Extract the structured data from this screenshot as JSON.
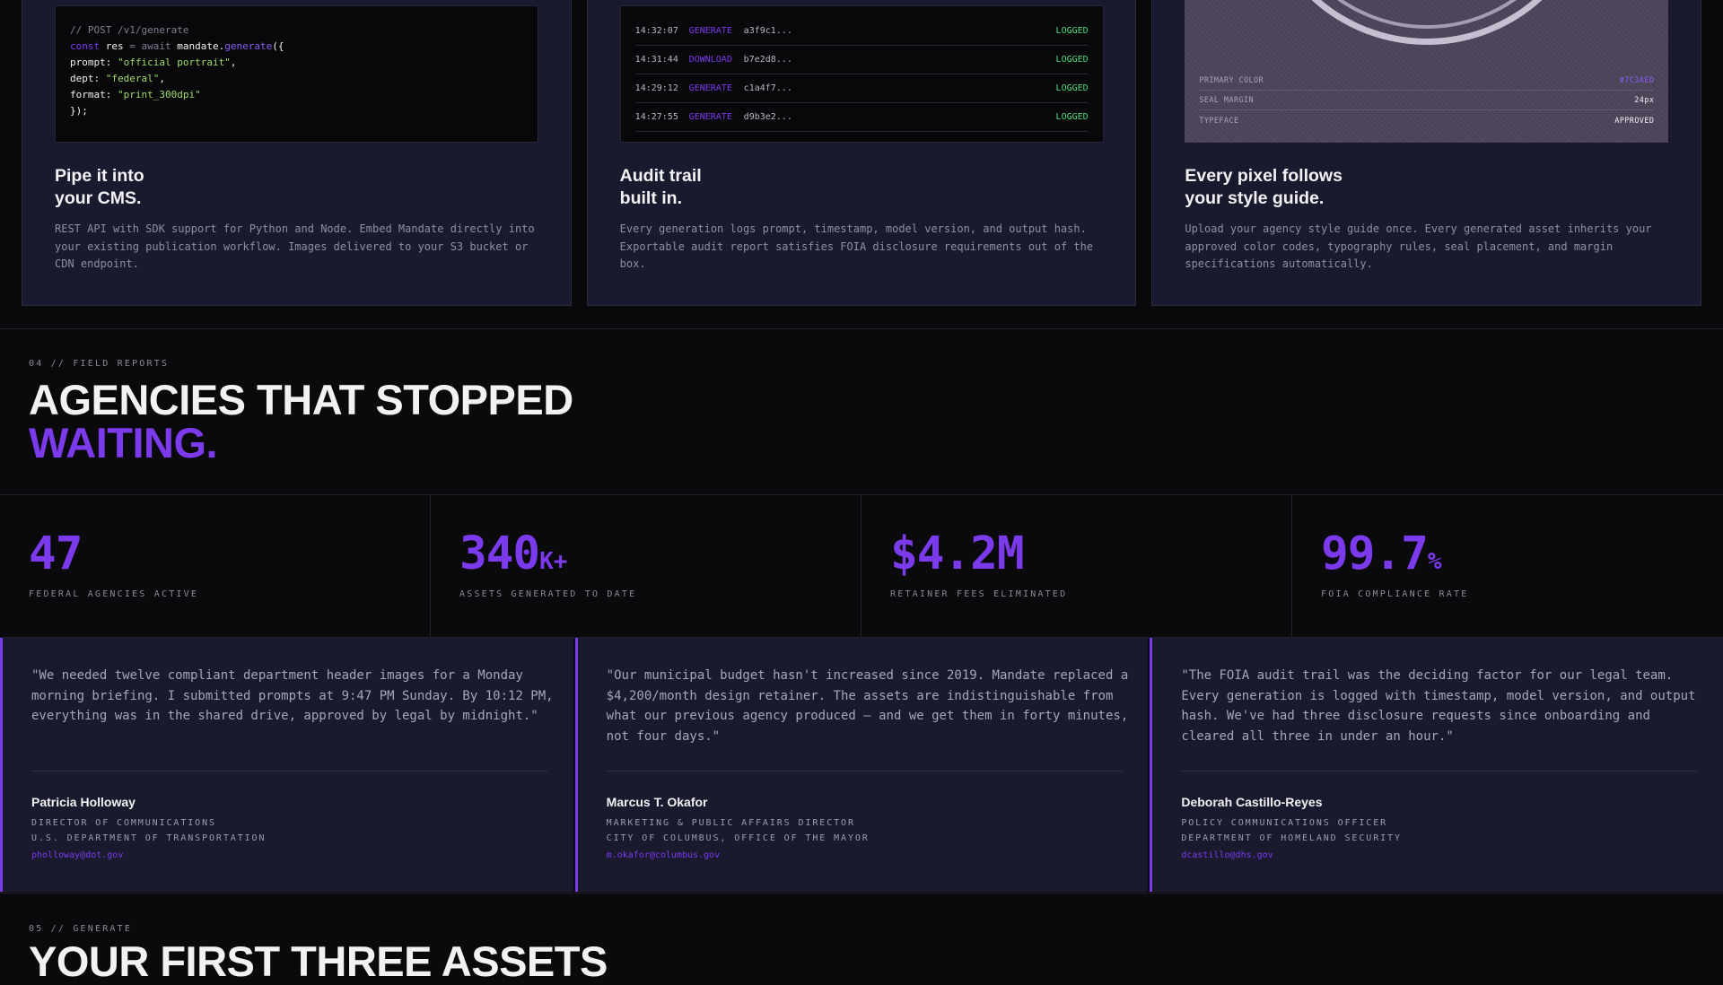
{
  "features": [
    {
      "title_line1": "Pipe it into",
      "title_line2": "your CMS.",
      "description": "REST API with SDK support for Python and Node. Embed Mandate directly into your existing publication workflow. Images delivered to your S3 bucket or CDN endpoint.",
      "code": {
        "comment": "// POST /v1/generate",
        "kw_const": "const",
        "var_res": "res",
        "eq": " = ",
        "kw_await": "await",
        "obj": "mandate.",
        "fn": "generate",
        "open": "({",
        "prompt_key": "prompt: ",
        "prompt_val": "\"official portrait\"",
        "dept_key": "dept: ",
        "dept_val": "\"federal\"",
        "format_key": "format: ",
        "format_val": "\"print_300dpi\"",
        "close": "});",
        "comma": ","
      }
    },
    {
      "title_line1": "Audit trail",
      "title_line2": "built in.",
      "description": "Every generation logs prompt, timestamp, model version, and output hash. Exportable audit report satisfies FOIA disclosure requirements out of the box.",
      "log": [
        {
          "time": "14:32:07",
          "action": "GENERATE",
          "hash": "a3f9c1...",
          "status": "LOGGED"
        },
        {
          "time": "14:31:44",
          "action": "DOWNLOAD",
          "hash": "b7e2d8...",
          "status": "LOGGED"
        },
        {
          "time": "14:29:12",
          "action": "GENERATE",
          "hash": "c1a4f7...",
          "status": "LOGGED"
        },
        {
          "time": "14:27:55",
          "action": "GENERATE",
          "hash": "d9b3e2...",
          "status": "LOGGED"
        }
      ]
    },
    {
      "title_line1": "Every pixel follows",
      "title_line2": "your style guide.",
      "description": "Upload your agency style guide once. Every generated asset inherits your approved color codes, typography rules, seal placement, and margin specifications automatically.",
      "specs": [
        {
          "key": "PRIMARY COLOR",
          "value": "#7C3AED"
        },
        {
          "key": "SEAL MARGIN",
          "value": "24px"
        },
        {
          "key": "TYPEFACE",
          "value": "APPROVED"
        }
      ]
    }
  ],
  "reports": {
    "eyebrow": "04 // FIELD REPORTS",
    "headline_line1": "AGENCIES THAT STOPPED",
    "headline_line2": "WAITING.",
    "stats": [
      {
        "value": "47",
        "suffix": "",
        "label": "FEDERAL AGENCIES ACTIVE"
      },
      {
        "value": "340",
        "suffix": "K+",
        "label": "ASSETS GENERATED TO DATE"
      },
      {
        "value": "$4.2M",
        "suffix": "",
        "label": "RETAINER FEES ELIMINATED"
      },
      {
        "value": "99.7",
        "suffix": "%",
        "label": "FOIA COMPLIANCE RATE"
      }
    ],
    "testimonials": [
      {
        "quote": "\"We needed twelve compliant department header images for a Monday morning briefing. I submitted prompts at 9:47 PM Sunday. By 10:12 PM, everything was in the shared drive, approved by legal by midnight.\"",
        "name": "Patricia Holloway",
        "role_line1": "DIRECTOR OF COMMUNICATIONS",
        "role_line2": "U.S. DEPARTMENT OF TRANSPORTATION",
        "email": "pholloway@dot.gov"
      },
      {
        "quote": "\"Our municipal budget hasn't increased since 2019. Mandate replaced a $4,200/month design retainer. The assets are indistinguishable from what our previous agency produced — and we get them in forty minutes, not four days.\"",
        "name": "Marcus T. Okafor",
        "role_line1": "MARKETING & PUBLIC AFFAIRS DIRECTOR",
        "role_line2": "CITY OF COLUMBUS, OFFICE OF THE MAYOR",
        "email": "m.okafor@columbus.gov"
      },
      {
        "quote": "\"The FOIA audit trail was the deciding factor for our legal team. Every generation is logged with timestamp, model version, and output hash. We've had three disclosure requests since onboarding and cleared all three in under an hour.\"",
        "name": "Deborah Castillo-Reyes",
        "role_line1": "POLICY COMMUNICATIONS OFFICER",
        "role_line2": "DEPARTMENT OF HOMELAND SECURITY",
        "email": "dcastillo@dhs.gov"
      }
    ]
  },
  "generate": {
    "eyebrow": "05 // GENERATE",
    "headline": "YOUR FIRST THREE ASSETS"
  },
  "colors": {
    "accent": "#7C3AED",
    "background": "#0A0A0C",
    "card": "#1A1A2E",
    "success": "#4ADE80"
  }
}
